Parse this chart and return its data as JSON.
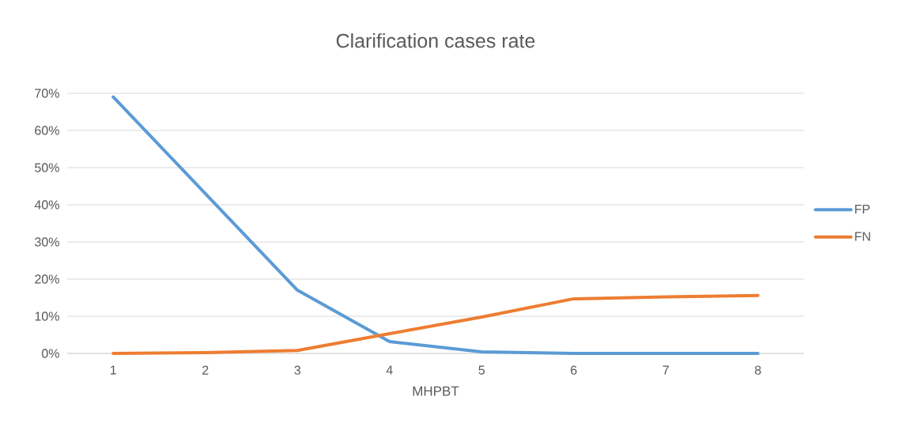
{
  "chart_data": {
    "type": "line",
    "title": "Clarification cases rate",
    "xlabel": "MHPBT",
    "categories": [
      "1",
      "2",
      "3",
      "4",
      "5",
      "6",
      "7",
      "8"
    ],
    "series": [
      {
        "name": "FP",
        "color": "#5b9bd5",
        "values": [
          69,
          43,
          17,
          3.2,
          0.4,
          0,
          0,
          0
        ]
      },
      {
        "name": "FN",
        "color": "#ed7d31",
        "values": [
          0,
          0.2,
          0.8,
          5.3,
          9.8,
          14.7,
          15.2,
          15.6
        ]
      }
    ],
    "ylim": [
      0,
      70
    ],
    "yticks": [
      {
        "value": 0,
        "label": "0%"
      },
      {
        "value": 10,
        "label": "10%"
      },
      {
        "value": 20,
        "label": "20%"
      },
      {
        "value": 30,
        "label": "30%"
      },
      {
        "value": 40,
        "label": "40%"
      },
      {
        "value": 50,
        "label": "50%"
      },
      {
        "value": 60,
        "label": "60%"
      },
      {
        "value": 70,
        "label": "70%"
      }
    ],
    "grid": "y",
    "legend": "right"
  }
}
